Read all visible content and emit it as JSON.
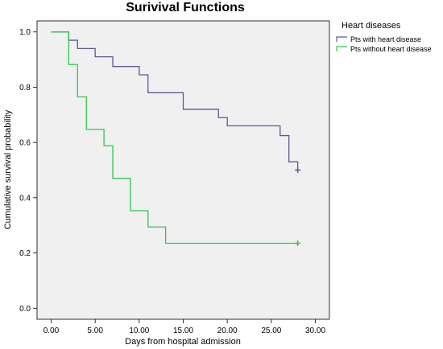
{
  "chart_data": {
    "type": "line",
    "title": "Surivival Functions",
    "xlabel": "Days from hospital admission",
    "ylabel": "Cumulative survival probability",
    "xlim": [
      -1.6,
      31.6
    ],
    "ylim": [
      -0.04,
      1.04
    ],
    "x_ticks": [
      0,
      5,
      10,
      15,
      20,
      25,
      30
    ],
    "x_tick_labels": [
      "0.00",
      "5.00",
      "10.00",
      "15.00",
      "20.00",
      "25.00",
      "30.00"
    ],
    "y_ticks": [
      0,
      0.2,
      0.4,
      0.6,
      0.8,
      1.0
    ],
    "y_tick_labels": [
      "0.0",
      "0.2",
      "0.4",
      "0.6",
      "0.8",
      "1.0"
    ],
    "grid": false,
    "legend_title": "Heart diseases",
    "legend_position": "top-right, outside plot",
    "plot_background": "#f0f0f0",
    "series": [
      {
        "name": "Pts with heart disease",
        "color": "#5a5a9a",
        "step": true,
        "x": [
          0,
          2,
          3,
          5,
          7,
          10,
          11,
          15,
          19,
          20,
          26,
          27,
          28
        ],
        "y": [
          1.0,
          0.97,
          0.94,
          0.91,
          0.875,
          0.845,
          0.78,
          0.72,
          0.69,
          0.66,
          0.625,
          0.53,
          0.5
        ],
        "censored": [
          [
            28,
            0.5
          ]
        ]
      },
      {
        "name": "Pts without heart disease",
        "color": "#2ec84a",
        "step": true,
        "x": [
          0,
          2,
          3,
          4,
          6,
          7,
          9,
          11,
          13,
          28
        ],
        "y": [
          1.0,
          0.882,
          0.765,
          0.647,
          0.588,
          0.47,
          0.353,
          0.294,
          0.235,
          0.235
        ],
        "censored": [
          [
            28,
            0.235
          ]
        ]
      }
    ]
  }
}
